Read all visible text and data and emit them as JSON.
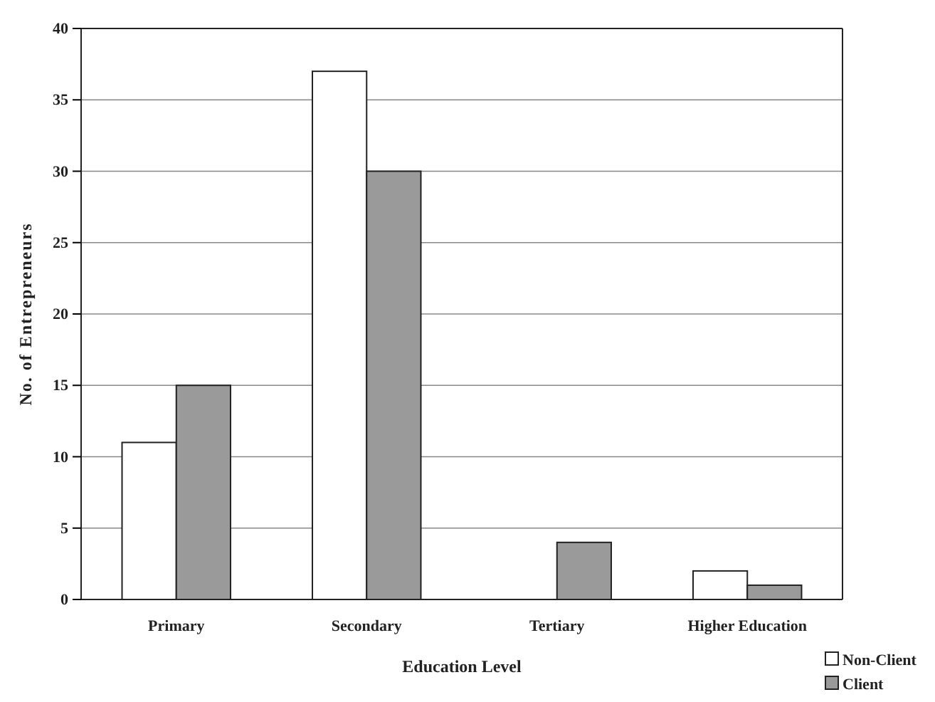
{
  "chart_data": {
    "type": "bar",
    "xlabel": "Education Level",
    "ylabel": "No. of Entrepreneurs",
    "categories": [
      "Primary",
      "Secondary",
      "Tertiary",
      "Higher Education"
    ],
    "series": [
      {
        "name": "Non-Client",
        "color": "#ffffff",
        "values": [
          11,
          37,
          0,
          2
        ]
      },
      {
        "name": "Client",
        "color": "#9a9a9a",
        "values": [
          15,
          30,
          4,
          1
        ]
      }
    ],
    "ylim": [
      0,
      40
    ],
    "yticks": [
      0,
      5,
      10,
      15,
      20,
      25,
      30,
      35,
      40
    ],
    "grid": "y",
    "legend": "bottom right"
  }
}
